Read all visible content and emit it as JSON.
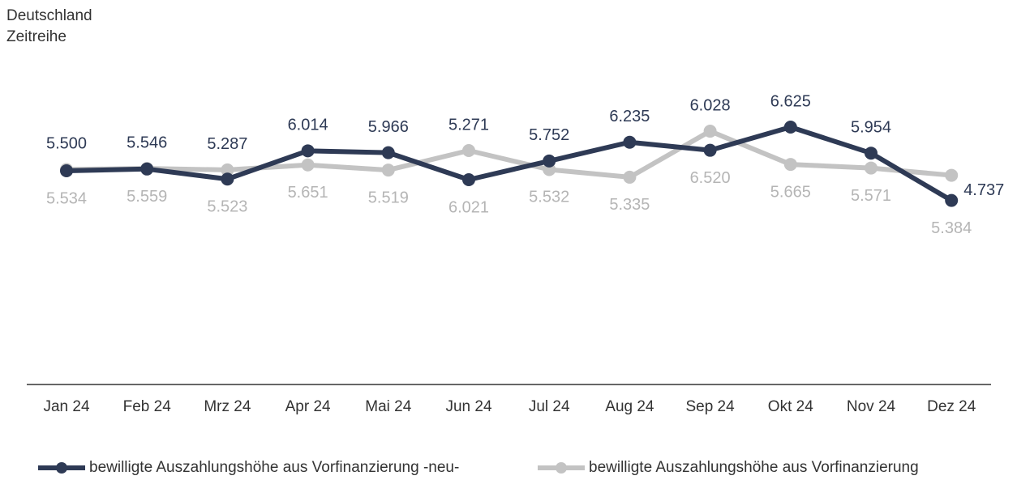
{
  "chart_data": {
    "type": "line",
    "title": "Deutschland",
    "subtitle": "Zeitreihe",
    "categories": [
      "Jan 24",
      "Feb 24",
      "Mrz 24",
      "Apr 24",
      "Mai 24",
      "Jun 24",
      "Jul 24",
      "Aug 24",
      "Sep 24",
      "Okt 24",
      "Nov 24",
      "Dez 24"
    ],
    "series": [
      {
        "name": "bewilligte Auszahlungshöhe aus Vorfinanzierung -neu-",
        "color": "#2e3a55",
        "values": [
          5500,
          5546,
          5287,
          6014,
          5966,
          5271,
          5752,
          6235,
          6028,
          6625,
          5954,
          4737
        ],
        "value_labels": [
          "5.500",
          "5.546",
          "5.287",
          "6.014",
          "5.966",
          "5.271",
          "5.752",
          "6.235",
          "6.028",
          "6.625",
          "5.954",
          "4.737"
        ]
      },
      {
        "name": "bewilligte Auszahlungshöhe aus Vorfinanzierung",
        "color": "#c3c3c3",
        "values": [
          5534,
          5559,
          5523,
          5651,
          5519,
          6021,
          5532,
          5335,
          6520,
          5665,
          5571,
          5384
        ],
        "value_labels": [
          "5.534",
          "5.559",
          "5.523",
          "5.651",
          "5.519",
          "6.021",
          "5.532",
          "5.335",
          "6.520",
          "5.665",
          "5.571",
          "5.384"
        ]
      }
    ]
  }
}
